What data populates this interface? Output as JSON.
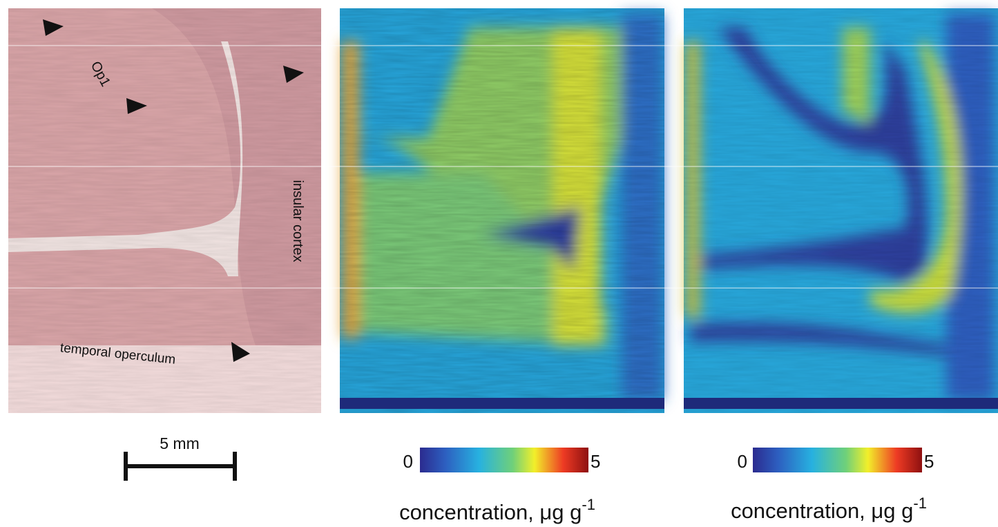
{
  "histology": {
    "labels": {
      "op1": "Op1",
      "insular": "insular cortex",
      "temporal": "temporal operculum"
    },
    "scale_bar": "5 mm"
  },
  "maps": [
    {
      "colorbar": {
        "min_label": "0",
        "max_label": "5"
      },
      "caption": {
        "text": "concentration, μg g",
        "superscript": "-1"
      }
    },
    {
      "colorbar": {
        "min_label": "0",
        "max_label": "5"
      },
      "caption": {
        "text": "concentration, μg g",
        "superscript": "-1"
      }
    }
  ]
}
